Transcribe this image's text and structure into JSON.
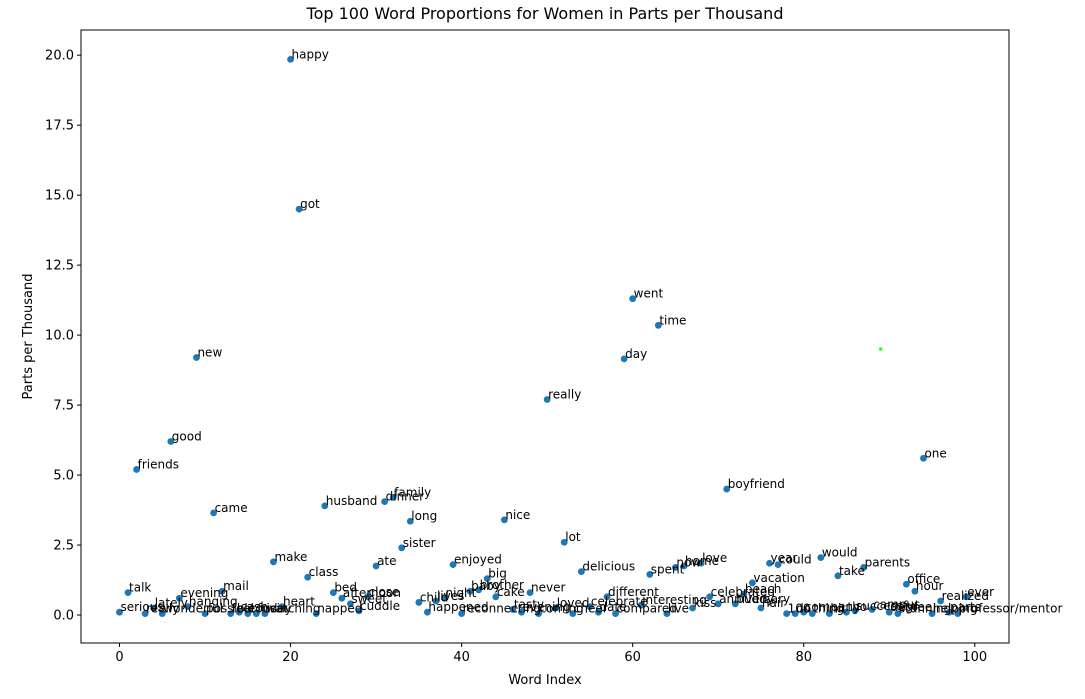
{
  "chart_data": {
    "type": "scatter",
    "title": "Top 100 Word Proportions for Women in Parts per Thousand",
    "xlabel": "Word Index",
    "ylabel": "Parts per Thousand",
    "xlim": [
      -4.5,
      104
    ],
    "ylim": [
      -1.0,
      20.9
    ],
    "x_ticks": [
      0,
      20,
      40,
      60,
      80,
      100
    ],
    "y_ticks": [
      0.0,
      2.5,
      5.0,
      7.5,
      10.0,
      12.5,
      15.0,
      17.5,
      20.0
    ],
    "y_tick_labels": [
      "0.0",
      "2.5",
      "5.0",
      "7.5",
      "10.0",
      "12.5",
      "15.0",
      "17.5",
      "20.0"
    ],
    "grid": false,
    "point_color": "#1f77b4",
    "highlight_color": "#33ff33",
    "points": [
      {
        "x": 0,
        "y": 0.1,
        "label": "serious"
      },
      {
        "x": 1,
        "y": 0.8,
        "label": "talk"
      },
      {
        "x": 2,
        "y": 5.2,
        "label": "friends"
      },
      {
        "x": 3,
        "y": 0.05,
        "label": "really"
      },
      {
        "x": 4,
        "y": 0.25,
        "label": "lately"
      },
      {
        "x": 5,
        "y": 0.05,
        "label": "wonderful"
      },
      {
        "x": 6,
        "y": 6.2,
        "label": "good"
      },
      {
        "x": 7,
        "y": 0.6,
        "label": "evening"
      },
      {
        "x": 8,
        "y": 0.3,
        "label": "hanging"
      },
      {
        "x": 9,
        "y": 9.2,
        "label": "new"
      },
      {
        "x": 10,
        "y": 0.05,
        "label": "possible"
      },
      {
        "x": 11,
        "y": 3.65,
        "label": "came"
      },
      {
        "x": 12,
        "y": 0.85,
        "label": "mail"
      },
      {
        "x": 13,
        "y": 0.05,
        "label": "feel"
      },
      {
        "x": 14,
        "y": 0.1,
        "label": "cash"
      },
      {
        "x": 15,
        "y": 0.05,
        "label": "cousin"
      },
      {
        "x": 16,
        "y": 0.05,
        "label": "friday"
      },
      {
        "x": 17,
        "y": 0.05,
        "label": "watching"
      },
      {
        "x": 18,
        "y": 1.9,
        "label": "make"
      },
      {
        "x": 19,
        "y": 0.3,
        "label": "heart"
      },
      {
        "x": 20,
        "y": 19.85,
        "label": "happy"
      },
      {
        "x": 21,
        "y": 14.5,
        "label": "got"
      },
      {
        "x": 22,
        "y": 1.35,
        "label": "class"
      },
      {
        "x": 23,
        "y": 0.05,
        "label": "napped"
      },
      {
        "x": 24,
        "y": 3.9,
        "label": "husband"
      },
      {
        "x": 25,
        "y": 0.8,
        "label": "bed"
      },
      {
        "x": 26,
        "y": 0.6,
        "label": "afternoon"
      },
      {
        "x": 27,
        "y": 0.4,
        "label": "sweet"
      },
      {
        "x": 28,
        "y": 0.15,
        "label": "cuddle"
      },
      {
        "x": 29,
        "y": 0.65,
        "label": "close"
      },
      {
        "x": 30,
        "y": 1.75,
        "label": "ate"
      },
      {
        "x": 31,
        "y": 4.05,
        "label": "dinner"
      },
      {
        "x": 32,
        "y": 4.2,
        "label": "family"
      },
      {
        "x": 33,
        "y": 2.4,
        "label": "sister"
      },
      {
        "x": 34,
        "y": 3.35,
        "label": "long"
      },
      {
        "x": 35,
        "y": 0.45,
        "label": "child"
      },
      {
        "x": 36,
        "y": 0.1,
        "label": "happened"
      },
      {
        "x": 37,
        "y": 0.5,
        "label": "lives"
      },
      {
        "x": 38,
        "y": 0.6,
        "label": "night"
      },
      {
        "x": 39,
        "y": 1.8,
        "label": "enjoyed"
      },
      {
        "x": 40,
        "y": 0.05,
        "label": "reconnecting"
      },
      {
        "x": 41,
        "y": 0.85,
        "label": "baby"
      },
      {
        "x": 42,
        "y": 0.9,
        "label": "brother"
      },
      {
        "x": 43,
        "y": 1.3,
        "label": "big"
      },
      {
        "x": 44,
        "y": 0.65,
        "label": "cake"
      },
      {
        "x": 45,
        "y": 3.4,
        "label": "nice"
      },
      {
        "x": 46,
        "y": 0.2,
        "label": "tasty"
      },
      {
        "x": 47,
        "y": 0.1,
        "label": "evening"
      },
      {
        "x": 48,
        "y": 0.8,
        "label": "never"
      },
      {
        "x": 49,
        "y": 0.05,
        "label": "coming"
      },
      {
        "x": 50,
        "y": 7.7,
        "label": "really"
      },
      {
        "x": 51,
        "y": 0.25,
        "label": "loved"
      },
      {
        "x": 52,
        "y": 2.6,
        "label": "lot"
      },
      {
        "x": 53,
        "y": 0.05,
        "label": "cheer"
      },
      {
        "x": 54,
        "y": 1.55,
        "label": "delicious"
      },
      {
        "x": 55,
        "y": 0.3,
        "label": "celebrate"
      },
      {
        "x": 56,
        "y": 0.1,
        "label": "date"
      },
      {
        "x": 57,
        "y": 0.65,
        "label": "different"
      },
      {
        "x": 58,
        "y": 0.05,
        "label": "compared"
      },
      {
        "x": 59,
        "y": 9.15,
        "label": "day"
      },
      {
        "x": 60,
        "y": 11.3,
        "label": "went"
      },
      {
        "x": 61,
        "y": 0.35,
        "label": "interesting"
      },
      {
        "x": 62,
        "y": 1.45,
        "label": "spent"
      },
      {
        "x": 63,
        "y": 10.35,
        "label": "time"
      },
      {
        "x": 64,
        "y": 0.05,
        "label": "live"
      },
      {
        "x": 65,
        "y": 1.7,
        "label": "now"
      },
      {
        "x": 66,
        "y": 1.75,
        "label": "home"
      },
      {
        "x": 67,
        "y": 0.25,
        "label": "kiss"
      },
      {
        "x": 68,
        "y": 1.85,
        "label": "love"
      },
      {
        "x": 69,
        "y": 0.65,
        "label": "celebrated"
      },
      {
        "x": 70,
        "y": 0.4,
        "label": "anniversary"
      },
      {
        "x": 71,
        "y": 4.5,
        "label": "boyfriend"
      },
      {
        "x": 72,
        "y": 0.4,
        "label": "buddy"
      },
      {
        "x": 73,
        "y": 0.75,
        "label": "beach"
      },
      {
        "x": 74,
        "y": 1.15,
        "label": "vacation"
      },
      {
        "x": 75,
        "y": 0.25,
        "label": "hair"
      },
      {
        "x": 76,
        "y": 1.85,
        "label": "year"
      },
      {
        "x": 77,
        "y": 1.8,
        "label": "could"
      },
      {
        "x": 78,
        "y": 0.05,
        "label": "100"
      },
      {
        "x": 79,
        "y": 0.05,
        "label": "do"
      },
      {
        "x": 80,
        "y": 0.1,
        "label": "company"
      },
      {
        "x": 81,
        "y": 0.05,
        "label": "thing"
      },
      {
        "x": 82,
        "y": 2.05,
        "label": "would"
      },
      {
        "x": 83,
        "y": 0.05,
        "label": "hit"
      },
      {
        "x": 84,
        "y": 1.4,
        "label": "take"
      },
      {
        "x": 85,
        "y": 0.1,
        "label": "tho"
      },
      {
        "x": 86,
        "y": 0.15,
        "label": "successful"
      },
      {
        "x": 87,
        "y": 1.7,
        "label": "parents"
      },
      {
        "x": 88,
        "y": 0.2,
        "label": "campus"
      },
      {
        "x": 89,
        "y": 9.5,
        "label": "",
        "highlight": true
      },
      {
        "x": 90,
        "y": 0.1,
        "label": "degree"
      },
      {
        "x": 91,
        "y": 0.05,
        "label": "stunning"
      },
      {
        "x": 92,
        "y": 1.1,
        "label": "office"
      },
      {
        "x": 93,
        "y": 0.85,
        "label": "hour"
      },
      {
        "x": 94,
        "y": 5.6,
        "label": "one"
      },
      {
        "x": 95,
        "y": 0.05,
        "label": "helping"
      },
      {
        "x": 96,
        "y": 0.5,
        "label": "realized"
      },
      {
        "x": 97,
        "y": 0.1,
        "label": "parts"
      },
      {
        "x": 98,
        "y": 0.05,
        "label": "professor/mentor"
      },
      {
        "x": 99,
        "y": 0.65,
        "label": "ever"
      }
    ]
  }
}
